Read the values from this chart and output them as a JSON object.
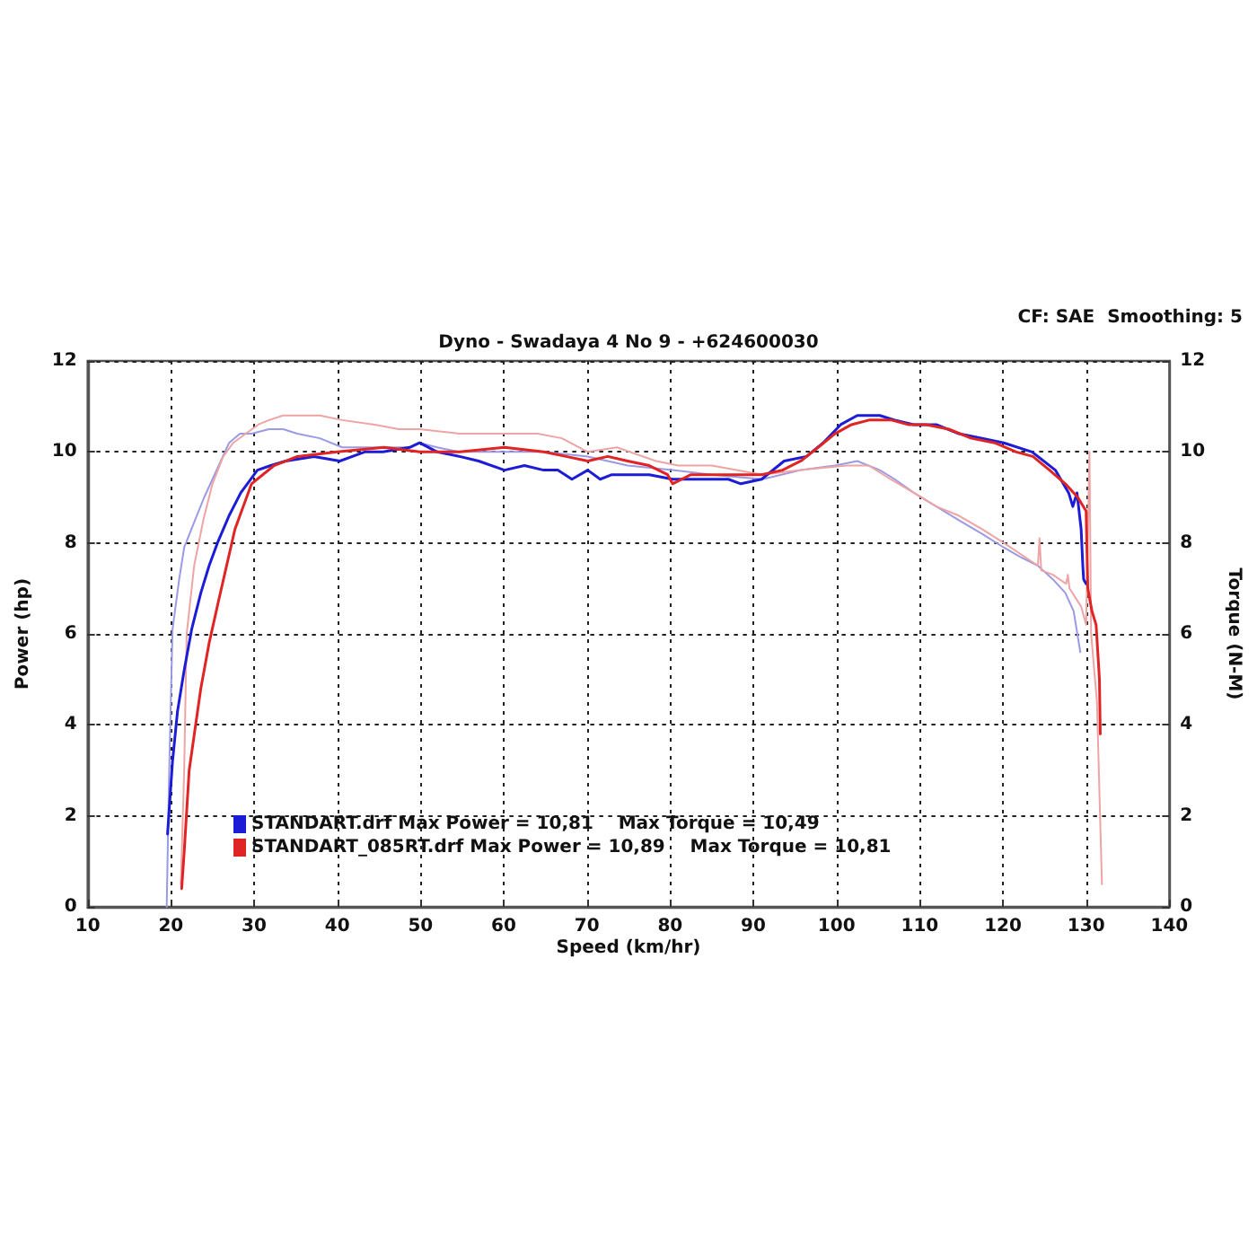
{
  "chart_data": {
    "type": "line",
    "title": "Dyno - Swadaya 4 No 9 - +624600030",
    "xlabel": "Speed (km/hr)",
    "ylabel": "Power (hp)",
    "y2label": "Torque (N-M)",
    "annotations": [
      "CF: SAE  Smoothing: 5"
    ],
    "xlim": [
      10,
      140
    ],
    "xticks": [
      10,
      20,
      30,
      40,
      50,
      60,
      70,
      80,
      90,
      100,
      110,
      120,
      130,
      140
    ],
    "ylim": [
      0,
      12
    ],
    "yticks": [
      0,
      2,
      4,
      6,
      8,
      10,
      12
    ],
    "y2lim": [
      0,
      12
    ],
    "y2ticks": [
      0,
      2,
      4,
      6,
      8,
      10,
      12
    ],
    "grid": true,
    "legend": "bottom left",
    "marker": "none",
    "line_style": "solid",
    "series": [
      {
        "color": "#9a9ae6",
        "axis": "y2",
        "x": [
          19.5,
          19.8,
          20.2,
          21.0,
          21.6,
          22.9,
          24.0,
          25.0,
          26.0,
          27.0,
          28.3,
          29.7,
          31.8,
          33.5,
          35.2,
          37.9,
          40.6,
          44.0,
          48.7,
          49.9,
          52.0,
          54.7,
          60.1,
          64.8,
          70.1,
          74.9,
          80.3,
          85.0,
          91.1,
          95.7,
          99.8,
          102.5,
          105.2,
          107.0,
          109.3,
          112.0,
          114.7,
          117.5,
          120.1,
          122.0,
          124.2,
          126.0,
          127.5,
          128.5,
          129.3
        ],
        "values": [
          0.0,
          3.0,
          6.1,
          7.2,
          7.9,
          8.5,
          9.0,
          9.4,
          9.8,
          10.2,
          10.4,
          10.4,
          10.5,
          10.5,
          10.4,
          10.3,
          10.1,
          10.1,
          10.1,
          10.2,
          10.1,
          10.0,
          10.0,
          10.0,
          9.9,
          9.7,
          9.6,
          9.5,
          9.4,
          9.6,
          9.7,
          9.8,
          9.6,
          9.4,
          9.1,
          8.8,
          8.5,
          8.2,
          7.9,
          7.7,
          7.5,
          7.2,
          6.9,
          6.5,
          5.6
        ]
      },
      {
        "color": "#eea4a4",
        "axis": "y2",
        "x": [
          21.2,
          21.6,
          21.9,
          22.8,
          23.9,
          25.0,
          26.3,
          27.5,
          29.0,
          30.5,
          31.8,
          33.5,
          35.2,
          37.9,
          40.6,
          44.5,
          47.4,
          49.9,
          54.7,
          60.1,
          64.1,
          67.0,
          70.1,
          73.6,
          78.3,
          81.0,
          85.0,
          91.1,
          95.7,
          101.2,
          103.9,
          106.5,
          109.3,
          112.0,
          114.7,
          117.5,
          120.1,
          124.2,
          124.4,
          124.6,
          126.0,
          127.6,
          127.8,
          128.0,
          129.4,
          130.0,
          130.4,
          130.6,
          131.3,
          131.9
        ],
        "values": [
          0.5,
          3.0,
          6.0,
          7.5,
          8.5,
          9.3,
          9.9,
          10.2,
          10.4,
          10.6,
          10.7,
          10.8,
          10.8,
          10.8,
          10.7,
          10.6,
          10.5,
          10.5,
          10.4,
          10.4,
          10.4,
          10.3,
          10.0,
          10.1,
          9.8,
          9.7,
          9.7,
          9.5,
          9.6,
          9.7,
          9.7,
          9.4,
          9.1,
          8.8,
          8.6,
          8.3,
          8.0,
          7.5,
          8.1,
          7.4,
          7.3,
          7.1,
          7.3,
          7.0,
          6.6,
          6.2,
          10.0,
          6.0,
          4.5,
          0.5
        ]
      },
      {
        "name": "STANDART.drf Max Power = 10,81    Max Torque = 10,49",
        "color": "#1c1cd6",
        "axis": "y",
        "x": [
          19.6,
          20.2,
          20.8,
          21.6,
          22.5,
          23.6,
          24.6,
          25.6,
          27.0,
          28.4,
          30.4,
          32.0,
          33.8,
          37.2,
          40.3,
          43.3,
          45.5,
          48.7,
          49.9,
          52.0,
          54.7,
          57.0,
          60.1,
          62.5,
          64.8,
          66.5,
          68.2,
          70.1,
          71.6,
          73.0,
          74.9,
          77.5,
          80.3,
          82.5,
          85.0,
          87.0,
          88.5,
          91.0,
          93.7,
          96.4,
          98.4,
          100.5,
          102.5,
          105.2,
          107.0,
          109.3,
          112.0,
          114.7,
          117.5,
          120.1,
          123.5,
          126.3,
          127.9,
          128.4,
          128.9,
          129.4,
          129.6,
          129.7,
          130.0
        ],
        "values": [
          1.6,
          3.2,
          4.3,
          5.2,
          6.1,
          6.9,
          7.5,
          8.0,
          8.6,
          9.1,
          9.6,
          9.7,
          9.8,
          9.9,
          9.8,
          10.0,
          10.0,
          10.1,
          10.2,
          10.0,
          9.9,
          9.8,
          9.6,
          9.7,
          9.6,
          9.6,
          9.4,
          9.6,
          9.4,
          9.5,
          9.5,
          9.5,
          9.4,
          9.4,
          9.4,
          9.4,
          9.3,
          9.4,
          9.8,
          9.9,
          10.2,
          10.6,
          10.8,
          10.8,
          10.7,
          10.6,
          10.6,
          10.4,
          10.3,
          10.2,
          10.0,
          9.6,
          9.1,
          8.8,
          9.1,
          8.3,
          7.5,
          7.2,
          7.1
        ]
      },
      {
        "name": "STANDART_085RT.drf Max Power = 10,89    Max Torque = 10,81",
        "color": "#e02424",
        "axis": "y",
        "x": [
          21.3,
          21.6,
          22.2,
          23.6,
          24.6,
          25.7,
          27.7,
          29.7,
          32.4,
          35.2,
          40.0,
          45.6,
          49.9,
          54.7,
          60.1,
          64.8,
          67.5,
          70.1,
          72.5,
          74.9,
          77.5,
          79.7,
          80.3,
          82.5,
          85.0,
          88.0,
          91.0,
          93.5,
          95.7,
          97.8,
          99.8,
          101.8,
          103.9,
          106.6,
          108.7,
          110.8,
          113.5,
          116.2,
          119.0,
          121.6,
          123.6,
          125.6,
          127.5,
          129.0,
          130.0,
          130.2,
          130.7,
          131.2,
          131.6,
          131.7
        ],
        "values": [
          0.4,
          1.2,
          3.0,
          4.8,
          5.8,
          6.7,
          8.3,
          9.3,
          9.7,
          9.9,
          10.0,
          10.1,
          10.0,
          10.0,
          10.1,
          10.0,
          9.9,
          9.8,
          9.9,
          9.8,
          9.7,
          9.5,
          9.3,
          9.5,
          9.5,
          9.5,
          9.5,
          9.6,
          9.8,
          10.1,
          10.4,
          10.6,
          10.7,
          10.7,
          10.6,
          10.6,
          10.5,
          10.3,
          10.2,
          10.0,
          9.9,
          9.6,
          9.3,
          9.0,
          8.7,
          7.0,
          6.5,
          6.2,
          5.0,
          3.8
        ]
      }
    ]
  }
}
